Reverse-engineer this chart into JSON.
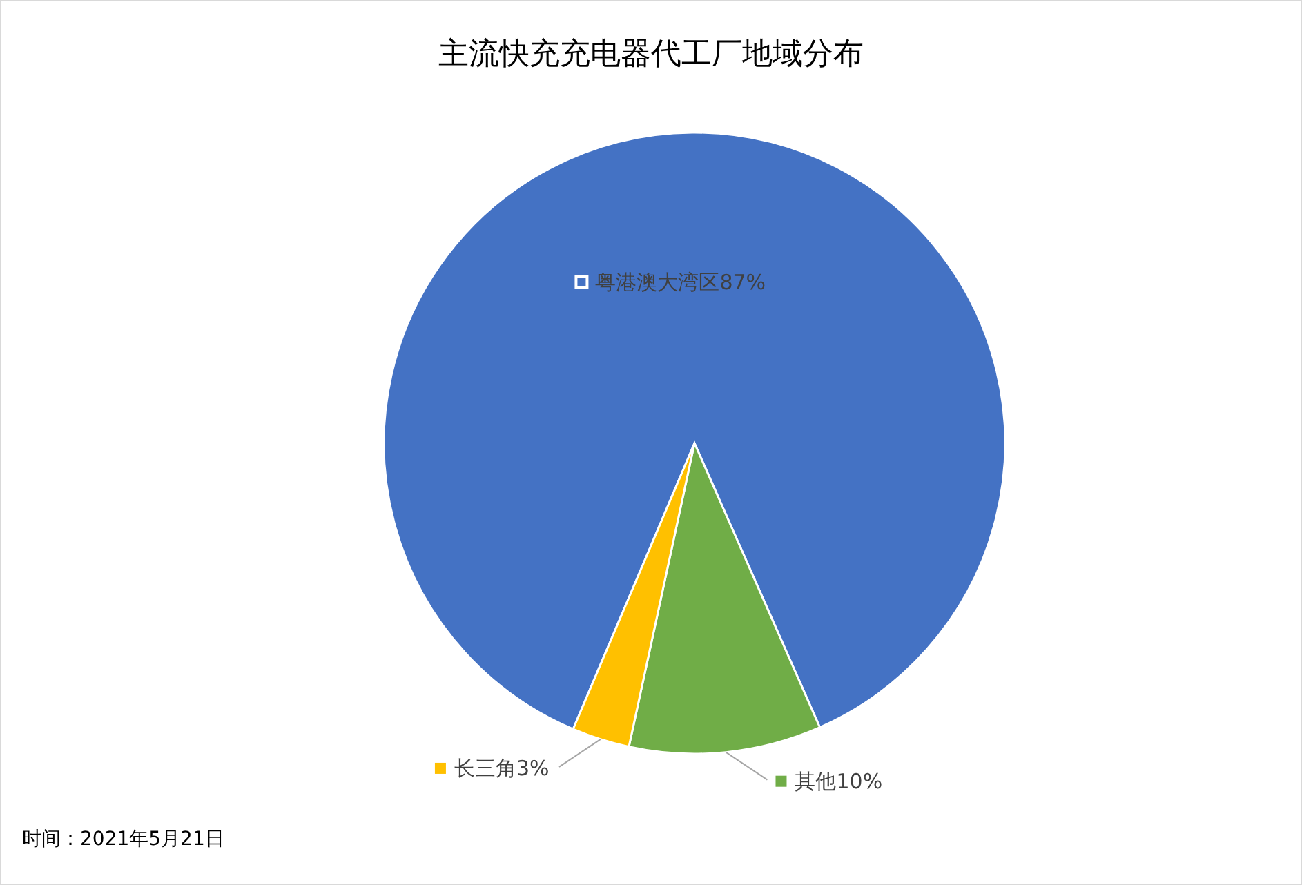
{
  "chart_data": {
    "type": "pie",
    "title": "主流快充充电器代工厂地域分布",
    "categories": [
      "粤港澳大湾区",
      "其他",
      "长三角"
    ],
    "values": [
      87,
      10,
      3
    ],
    "colors": [
      "#4472c4",
      "#70ad47",
      "#ffc000"
    ],
    "value_labels": [
      "87%",
      "10%",
      "3%"
    ],
    "legend": "bottom",
    "annotations": [
      "时间：2021年5月21日"
    ]
  }
}
